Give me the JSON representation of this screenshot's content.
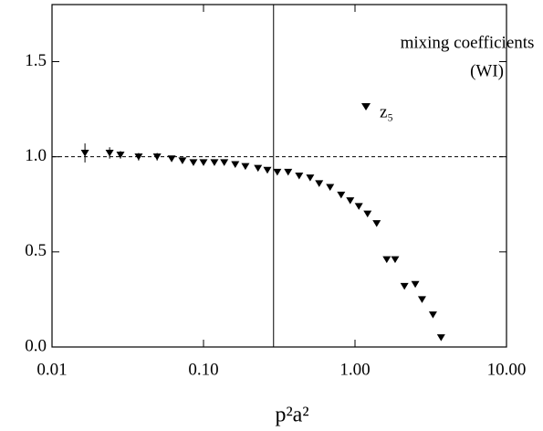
{
  "chart_data": {
    "type": "scatter",
    "x_label": "p²a²",
    "annotation": [
      "mixing coefficients",
      "(WI)"
    ],
    "log_x": true,
    "xlim": [
      0.01,
      10
    ],
    "ylim": [
      0,
      1.8
    ],
    "xticks": [
      {
        "value": 0.01,
        "label": "0.01"
      },
      {
        "value": 0.1,
        "label": "0.10"
      },
      {
        "value": 1,
        "label": "1.00"
      },
      {
        "value": 10,
        "label": "10.00"
      }
    ],
    "yticks": [
      {
        "value": 0,
        "label": "0.0"
      },
      {
        "value": 0.5,
        "label": "0.5"
      },
      {
        "value": 1,
        "label": "1.0"
      },
      {
        "value": 1.5,
        "label": "1.5"
      }
    ],
    "reference_lines": {
      "y": 1,
      "x": 0.29
    },
    "series": [
      {
        "name": "z₅",
        "color": "#000000",
        "x": [
          0.0165,
          0.024,
          0.0283,
          0.0373,
          0.0494,
          0.0616,
          0.0726,
          0.0858,
          0.1,
          0.118,
          0.137,
          0.162,
          0.189,
          0.229,
          0.264,
          0.307,
          0.362,
          0.428,
          0.506,
          0.58,
          0.685,
          0.81,
          0.93,
          1.06,
          1.21,
          1.39,
          1.62,
          1.84,
          2.12,
          2.5,
          2.77,
          3.27,
          3.7
        ],
        "values": [
          1.02,
          1.02,
          1.01,
          1.0,
          1.0,
          0.99,
          0.98,
          0.97,
          0.97,
          0.97,
          0.97,
          0.96,
          0.95,
          0.94,
          0.93,
          0.92,
          0.92,
          0.9,
          0.89,
          0.86,
          0.84,
          0.8,
          0.77,
          0.74,
          0.7,
          0.65,
          0.46,
          0.46,
          0.32,
          0.33,
          0.25,
          0.17,
          0.05
        ],
        "errors": [
          0.05,
          0.03,
          0.02,
          0.02,
          0.02,
          null,
          null,
          null,
          null,
          null,
          null,
          null,
          null,
          null,
          null,
          null,
          null,
          null,
          null,
          null,
          null,
          null,
          null,
          null,
          null,
          null,
          null,
          null,
          null,
          null,
          null,
          null,
          null
        ]
      }
    ]
  }
}
